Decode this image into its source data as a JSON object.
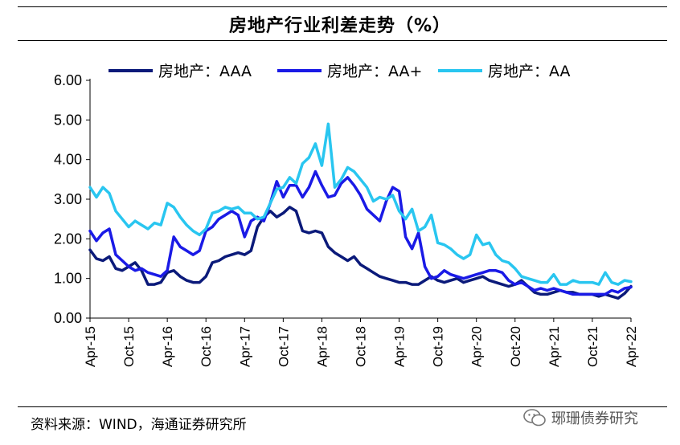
{
  "title": "房地产行业利差走势（%）",
  "footer": "资料来源：WIND，海通证券研究所",
  "watermark": "琊珊债券研究",
  "chart_data": {
    "type": "line",
    "xlabel": "",
    "ylabel": "",
    "ylim": [
      0,
      6
    ],
    "yticks": [
      "6.00",
      "5.00",
      "4.00",
      "3.00",
      "2.00",
      "1.00",
      "0.00"
    ],
    "xticks": [
      "Apr-15",
      "Oct-15",
      "Apr-16",
      "Oct-16",
      "Apr-17",
      "Oct-17",
      "Apr-18",
      "Oct-18",
      "Apr-19",
      "Oct-19",
      "Apr-20",
      "Oct-20",
      "Apr-21",
      "Oct-21",
      "Apr-22"
    ],
    "x_unit": "months since Apr-15",
    "legend_position": "top",
    "series": [
      {
        "name": "房地产：AAA",
        "color": "#0b1a7a",
        "points": [
          [
            0,
            1.72
          ],
          [
            1,
            1.5
          ],
          [
            2,
            1.45
          ],
          [
            3,
            1.55
          ],
          [
            4,
            1.25
          ],
          [
            5,
            1.2
          ],
          [
            6,
            1.3
          ],
          [
            7,
            1.4
          ],
          [
            8,
            1.2
          ],
          [
            9,
            0.85
          ],
          [
            10,
            0.85
          ],
          [
            11,
            0.9
          ],
          [
            12,
            1.15
          ],
          [
            13,
            1.2
          ],
          [
            14,
            1.05
          ],
          [
            15,
            0.95
          ],
          [
            16,
            0.9
          ],
          [
            17,
            0.9
          ],
          [
            18,
            1.05
          ],
          [
            19,
            1.4
          ],
          [
            20,
            1.45
          ],
          [
            21,
            1.55
          ],
          [
            22,
            1.6
          ],
          [
            23,
            1.65
          ],
          [
            24,
            1.6
          ],
          [
            25,
            1.7
          ],
          [
            26,
            2.3
          ],
          [
            27,
            2.55
          ],
          [
            28,
            2.7
          ],
          [
            29,
            2.55
          ],
          [
            30,
            2.65
          ],
          [
            31,
            2.8
          ],
          [
            32,
            2.7
          ],
          [
            33,
            2.2
          ],
          [
            34,
            2.15
          ],
          [
            35,
            2.2
          ],
          [
            36,
            2.15
          ],
          [
            37,
            1.8
          ],
          [
            38,
            1.65
          ],
          [
            39,
            1.55
          ],
          [
            40,
            1.45
          ],
          [
            41,
            1.55
          ],
          [
            42,
            1.35
          ],
          [
            43,
            1.25
          ],
          [
            44,
            1.15
          ],
          [
            45,
            1.05
          ],
          [
            46,
            1.0
          ],
          [
            47,
            0.95
          ],
          [
            48,
            0.9
          ],
          [
            49,
            0.9
          ],
          [
            50,
            0.85
          ],
          [
            51,
            0.85
          ],
          [
            52,
            0.95
          ],
          [
            53,
            1.05
          ],
          [
            54,
            0.95
          ],
          [
            55,
            0.9
          ],
          [
            56,
            0.95
          ],
          [
            57,
            1.0
          ],
          [
            58,
            0.9
          ],
          [
            59,
            0.95
          ],
          [
            60,
            1.0
          ],
          [
            61,
            1.05
          ],
          [
            62,
            0.95
          ],
          [
            63,
            0.9
          ],
          [
            64,
            0.85
          ],
          [
            65,
            0.8
          ],
          [
            66,
            0.85
          ],
          [
            67,
            0.95
          ],
          [
            68,
            0.8
          ],
          [
            69,
            0.65
          ],
          [
            70,
            0.6
          ],
          [
            71,
            0.6
          ],
          [
            72,
            0.65
          ],
          [
            73,
            0.7
          ],
          [
            74,
            0.65
          ],
          [
            75,
            0.65
          ],
          [
            76,
            0.6
          ],
          [
            77,
            0.6
          ],
          [
            78,
            0.6
          ],
          [
            79,
            0.55
          ],
          [
            80,
            0.6
          ],
          [
            81,
            0.55
          ],
          [
            82,
            0.5
          ],
          [
            83,
            0.62
          ],
          [
            84,
            0.8
          ]
        ]
      },
      {
        "name": "房地产：AA+",
        "color": "#1a1ae6",
        "points": [
          [
            0,
            2.2
          ],
          [
            1,
            1.95
          ],
          [
            2,
            2.15
          ],
          [
            3,
            2.25
          ],
          [
            4,
            1.6
          ],
          [
            5,
            1.45
          ],
          [
            6,
            1.3
          ],
          [
            7,
            1.2
          ],
          [
            8,
            1.25
          ],
          [
            9,
            1.15
          ],
          [
            10,
            1.1
          ],
          [
            11,
            1.05
          ],
          [
            12,
            1.2
          ],
          [
            13,
            2.05
          ],
          [
            14,
            1.8
          ],
          [
            15,
            1.7
          ],
          [
            16,
            1.6
          ],
          [
            17,
            1.7
          ],
          [
            18,
            2.2
          ],
          [
            19,
            2.3
          ],
          [
            20,
            2.5
          ],
          [
            21,
            2.6
          ],
          [
            22,
            2.7
          ],
          [
            23,
            2.6
          ],
          [
            24,
            2.05
          ],
          [
            25,
            2.45
          ],
          [
            26,
            2.55
          ],
          [
            27,
            2.45
          ],
          [
            28,
            2.9
          ],
          [
            29,
            3.45
          ],
          [
            30,
            3.05
          ],
          [
            31,
            3.35
          ],
          [
            32,
            3.35
          ],
          [
            33,
            3.05
          ],
          [
            34,
            3.3
          ],
          [
            35,
            3.7
          ],
          [
            36,
            3.35
          ],
          [
            37,
            3.05
          ],
          [
            38,
            3.1
          ],
          [
            39,
            3.4
          ],
          [
            40,
            3.55
          ],
          [
            41,
            3.35
          ],
          [
            42,
            3.1
          ],
          [
            43,
            2.75
          ],
          [
            44,
            2.6
          ],
          [
            45,
            2.45
          ],
          [
            46,
            2.95
          ],
          [
            47,
            3.3
          ],
          [
            48,
            3.2
          ],
          [
            49,
            2.05
          ],
          [
            50,
            1.75
          ],
          [
            51,
            2.15
          ],
          [
            52,
            1.3
          ],
          [
            53,
            1.0
          ],
          [
            54,
            1.05
          ],
          [
            55,
            1.2
          ],
          [
            56,
            1.1
          ],
          [
            57,
            1.05
          ],
          [
            58,
            1.0
          ],
          [
            59,
            1.05
          ],
          [
            60,
            1.1
          ],
          [
            61,
            1.15
          ],
          [
            62,
            1.2
          ],
          [
            63,
            1.2
          ],
          [
            64,
            1.15
          ],
          [
            65,
            0.95
          ],
          [
            66,
            0.85
          ],
          [
            67,
            0.9
          ],
          [
            68,
            0.8
          ],
          [
            69,
            0.7
          ],
          [
            70,
            0.75
          ],
          [
            71,
            0.7
          ],
          [
            72,
            0.75
          ],
          [
            73,
            0.7
          ],
          [
            74,
            0.65
          ],
          [
            75,
            0.6
          ],
          [
            76,
            0.6
          ],
          [
            77,
            0.6
          ],
          [
            78,
            0.6
          ],
          [
            79,
            0.6
          ],
          [
            80,
            0.6
          ],
          [
            81,
            0.7
          ],
          [
            82,
            0.65
          ],
          [
            83,
            0.75
          ],
          [
            84,
            0.78
          ]
        ]
      },
      {
        "name": "房地产：AA",
        "color": "#29c6f0",
        "points": [
          [
            0,
            3.3
          ],
          [
            1,
            3.05
          ],
          [
            2,
            3.3
          ],
          [
            3,
            3.15
          ],
          [
            4,
            2.7
          ],
          [
            5,
            2.5
          ],
          [
            6,
            2.3
          ],
          [
            7,
            2.45
          ],
          [
            8,
            2.35
          ],
          [
            9,
            2.25
          ],
          [
            10,
            2.4
          ],
          [
            11,
            2.35
          ],
          [
            12,
            2.9
          ],
          [
            13,
            2.8
          ],
          [
            14,
            2.55
          ],
          [
            15,
            2.35
          ],
          [
            16,
            2.2
          ],
          [
            17,
            2.1
          ],
          [
            18,
            2.25
          ],
          [
            19,
            2.65
          ],
          [
            20,
            2.7
          ],
          [
            21,
            2.8
          ],
          [
            22,
            2.75
          ],
          [
            23,
            2.8
          ],
          [
            24,
            2.65
          ],
          [
            25,
            2.65
          ],
          [
            26,
            2.5
          ],
          [
            27,
            2.55
          ],
          [
            28,
            2.9
          ],
          [
            29,
            3.25
          ],
          [
            30,
            3.3
          ],
          [
            31,
            3.55
          ],
          [
            32,
            3.4
          ],
          [
            33,
            3.9
          ],
          [
            34,
            4.05
          ],
          [
            35,
            4.4
          ],
          [
            36,
            3.85
          ],
          [
            37,
            4.9
          ],
          [
            38,
            3.3
          ],
          [
            39,
            3.5
          ],
          [
            40,
            3.8
          ],
          [
            41,
            3.7
          ],
          [
            42,
            3.5
          ],
          [
            43,
            3.3
          ],
          [
            44,
            2.95
          ],
          [
            45,
            3.05
          ],
          [
            46,
            3.0
          ],
          [
            47,
            3.1
          ],
          [
            48,
            2.7
          ],
          [
            49,
            2.5
          ],
          [
            50,
            2.75
          ],
          [
            51,
            2.2
          ],
          [
            52,
            2.3
          ],
          [
            53,
            2.6
          ],
          [
            54,
            1.9
          ],
          [
            55,
            1.85
          ],
          [
            56,
            1.75
          ],
          [
            57,
            1.6
          ],
          [
            58,
            1.5
          ],
          [
            59,
            1.6
          ],
          [
            60,
            2.1
          ],
          [
            61,
            1.85
          ],
          [
            62,
            1.9
          ],
          [
            63,
            1.6
          ],
          [
            64,
            1.45
          ],
          [
            65,
            1.4
          ],
          [
            66,
            1.25
          ],
          [
            67,
            1.05
          ],
          [
            68,
            1.0
          ],
          [
            69,
            0.95
          ],
          [
            70,
            0.9
          ],
          [
            71,
            0.9
          ],
          [
            72,
            1.1
          ],
          [
            73,
            0.85
          ],
          [
            74,
            0.85
          ],
          [
            75,
            0.95
          ],
          [
            76,
            0.9
          ],
          [
            77,
            0.9
          ],
          [
            78,
            0.9
          ],
          [
            79,
            0.85
          ],
          [
            80,
            1.15
          ],
          [
            81,
            0.9
          ],
          [
            82,
            0.85
          ],
          [
            83,
            0.95
          ],
          [
            84,
            0.92
          ]
        ]
      }
    ]
  }
}
